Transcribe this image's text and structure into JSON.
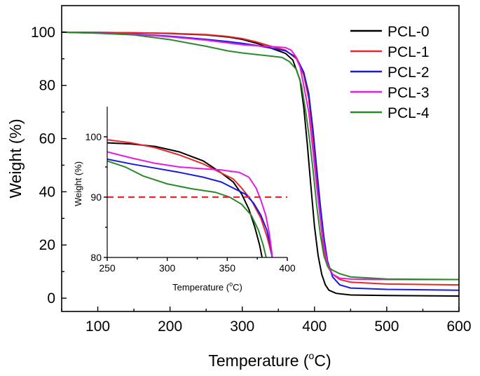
{
  "chart_data": [
    {
      "id": "main",
      "type": "line",
      "title": "",
      "xlabel": "Temperature (",
      "xlabel_unit_sup": "o",
      "xlabel_unit": "C)",
      "ylabel": "Weight (%)",
      "xlim": [
        50,
        600
      ],
      "ylim": [
        -5,
        110
      ],
      "xticks": [
        100,
        200,
        300,
        400,
        500,
        600
      ],
      "yticks": [
        0,
        20,
        40,
        60,
        80,
        100
      ],
      "legend_position": "top-right",
      "series": [
        {
          "name": "PCL-0",
          "color": "#000000",
          "points": [
            [
              50,
              100
            ],
            [
              100,
              99.9
            ],
            [
              150,
              99.8
            ],
            [
              200,
              99.5
            ],
            [
              250,
              99
            ],
            [
              280,
              98.2
            ],
            [
              300,
              97.3
            ],
            [
              320,
              95.8
            ],
            [
              340,
              94
            ],
            [
              360,
              92
            ],
            [
              370,
              89.5
            ],
            [
              380,
              82
            ],
            [
              385,
              72
            ],
            [
              390,
              58
            ],
            [
              395,
              42
            ],
            [
              400,
              27
            ],
            [
              405,
              16
            ],
            [
              410,
              9
            ],
            [
              415,
              5
            ],
            [
              420,
              3
            ],
            [
              430,
              1.8
            ],
            [
              450,
              1.2
            ],
            [
              500,
              1
            ],
            [
              600,
              0.8
            ]
          ]
        },
        {
          "name": "PCL-1",
          "color": "#e8282b",
          "points": [
            [
              50,
              100
            ],
            [
              100,
              99.9
            ],
            [
              150,
              99.8
            ],
            [
              200,
              99.6
            ],
            [
              250,
              99.1
            ],
            [
              280,
              98.4
            ],
            [
              300,
              97.6
            ],
            [
              320,
              96.3
            ],
            [
              340,
              94.7
            ],
            [
              360,
              93.2
            ],
            [
              375,
              90
            ],
            [
              385,
              84
            ],
            [
              392,
              75
            ],
            [
              398,
              60
            ],
            [
              403,
              45
            ],
            [
              408,
              30
            ],
            [
              412,
              20
            ],
            [
              418,
              12
            ],
            [
              425,
              9
            ],
            [
              435,
              7
            ],
            [
              450,
              6
            ],
            [
              500,
              5.3
            ],
            [
              600,
              5
            ]
          ]
        },
        {
          "name": "PCL-2",
          "color": "#1a1ae0",
          "points": [
            [
              50,
              100
            ],
            [
              100,
              99.7
            ],
            [
              150,
              99.3
            ],
            [
              200,
              98.5
            ],
            [
              250,
              97.3
            ],
            [
              280,
              96.5
            ],
            [
              300,
              95.8
            ],
            [
              320,
              95
            ],
            [
              340,
              94
            ],
            [
              360,
              93
            ],
            [
              375,
              90.5
            ],
            [
              385,
              85
            ],
            [
              392,
              77
            ],
            [
              398,
              63
            ],
            [
              403,
              49
            ],
            [
              408,
              35
            ],
            [
              413,
              23
            ],
            [
              418,
              14
            ],
            [
              425,
              8
            ],
            [
              435,
              5
            ],
            [
              450,
              3.8
            ],
            [
              500,
              3.3
            ],
            [
              600,
              3
            ]
          ]
        },
        {
          "name": "PCL-3",
          "color": "#e619e6",
          "points": [
            [
              50,
              100
            ],
            [
              100,
              99.7
            ],
            [
              150,
              99.2
            ],
            [
              200,
              98.3
            ],
            [
              250,
              97
            ],
            [
              280,
              96
            ],
            [
              300,
              95.3
            ],
            [
              320,
              94.9
            ],
            [
              340,
              94.6
            ],
            [
              360,
              94.2
            ],
            [
              368,
              93.2
            ],
            [
              375,
              90.5
            ],
            [
              380,
              87
            ],
            [
              385,
              80
            ],
            [
              392,
              70
            ],
            [
              398,
              55
            ],
            [
              403,
              42
            ],
            [
              408,
              30
            ],
            [
              413,
              20
            ],
            [
              418,
              13
            ],
            [
              425,
              9
            ],
            [
              435,
              7.5
            ],
            [
              450,
              7.2
            ],
            [
              500,
              7
            ],
            [
              600,
              7
            ]
          ]
        },
        {
          "name": "PCL-4",
          "color": "#2a8a2a",
          "points": [
            [
              50,
              100
            ],
            [
              100,
              99.6
            ],
            [
              150,
              99
            ],
            [
              200,
              97.2
            ],
            [
              250,
              94.7
            ],
            [
              280,
              93
            ],
            [
              300,
              92.2
            ],
            [
              320,
              91.6
            ],
            [
              340,
              91
            ],
            [
              355,
              90.5
            ],
            [
              365,
              89
            ],
            [
              375,
              86
            ],
            [
              382,
              80
            ],
            [
              388,
              70
            ],
            [
              393,
              60
            ],
            [
              398,
              48
            ],
            [
              403,
              35
            ],
            [
              408,
              24
            ],
            [
              413,
              16
            ],
            [
              418,
              12
            ],
            [
              425,
              10.5
            ],
            [
              435,
              9.2
            ],
            [
              450,
              8
            ],
            [
              500,
              7.2
            ],
            [
              600,
              7
            ]
          ]
        }
      ]
    },
    {
      "id": "inset",
      "type": "line",
      "xlabel": "Temperature (",
      "xlabel_unit_sup": "o",
      "xlabel_unit": "C)",
      "ylabel": "Weight (%)",
      "xlim": [
        250,
        400
      ],
      "ylim": [
        80,
        105
      ],
      "xticks": [
        250,
        300,
        350,
        400
      ],
      "yticks": [
        80,
        90,
        100
      ],
      "reference_line": {
        "y": 90,
        "color": "#e8282b",
        "style": "dashed"
      },
      "series": [
        {
          "name": "PCL-0",
          "color": "#000000",
          "points": [
            [
              250,
              99
            ],
            [
              270,
              98.8
            ],
            [
              290,
              98.4
            ],
            [
              310,
              97.5
            ],
            [
              330,
              96
            ],
            [
              345,
              94
            ],
            [
              355,
              92.5
            ],
            [
              362,
              90.5
            ],
            [
              368,
              88
            ],
            [
              373,
              85
            ],
            [
              377,
              82
            ],
            [
              380,
              79
            ]
          ]
        },
        {
          "name": "PCL-1",
          "color": "#e8282b",
          "points": [
            [
              250,
              99.5
            ],
            [
              270,
              99
            ],
            [
              290,
              98.2
            ],
            [
              310,
              97
            ],
            [
              330,
              95.5
            ],
            [
              345,
              94
            ],
            [
              355,
              93
            ],
            [
              362,
              91.5
            ],
            [
              370,
              89.5
            ],
            [
              378,
              86.5
            ],
            [
              383,
              83.5
            ],
            [
              387,
              80.5
            ],
            [
              389,
              79
            ]
          ]
        },
        {
          "name": "PCL-2",
          "color": "#1a1ae0",
          "points": [
            [
              250,
              96.3
            ],
            [
              270,
              95.5
            ],
            [
              290,
              94.8
            ],
            [
              310,
              94.1
            ],
            [
              330,
              93.3
            ],
            [
              345,
              92.5
            ],
            [
              355,
              91.5
            ],
            [
              365,
              90.5
            ],
            [
              372,
              89
            ],
            [
              378,
              87
            ],
            [
              383,
              84.5
            ],
            [
              386,
              82
            ],
            [
              388,
              79
            ]
          ]
        },
        {
          "name": "PCL-3",
          "color": "#e619e6",
          "points": [
            [
              250,
              97.5
            ],
            [
              270,
              96.5
            ],
            [
              290,
              95.6
            ],
            [
              310,
              95
            ],
            [
              330,
              94.7
            ],
            [
              345,
              94.5
            ],
            [
              360,
              94.1
            ],
            [
              368,
              93.3
            ],
            [
              374,
              91.5
            ],
            [
              378,
              89.5
            ],
            [
              382,
              87
            ],
            [
              385,
              84
            ],
            [
              387,
              81
            ],
            [
              388,
              79
            ]
          ]
        },
        {
          "name": "PCL-4",
          "color": "#2a8a2a",
          "points": [
            [
              250,
              96
            ],
            [
              265,
              95
            ],
            [
              280,
              93.5
            ],
            [
              300,
              92.2
            ],
            [
              320,
              91.4
            ],
            [
              340,
              90.8
            ],
            [
              352,
              90
            ],
            [
              362,
              88.8
            ],
            [
              370,
              87
            ],
            [
              376,
              84.5
            ],
            [
              380,
              82
            ],
            [
              383,
              79.5
            ]
          ]
        }
      ]
    }
  ]
}
